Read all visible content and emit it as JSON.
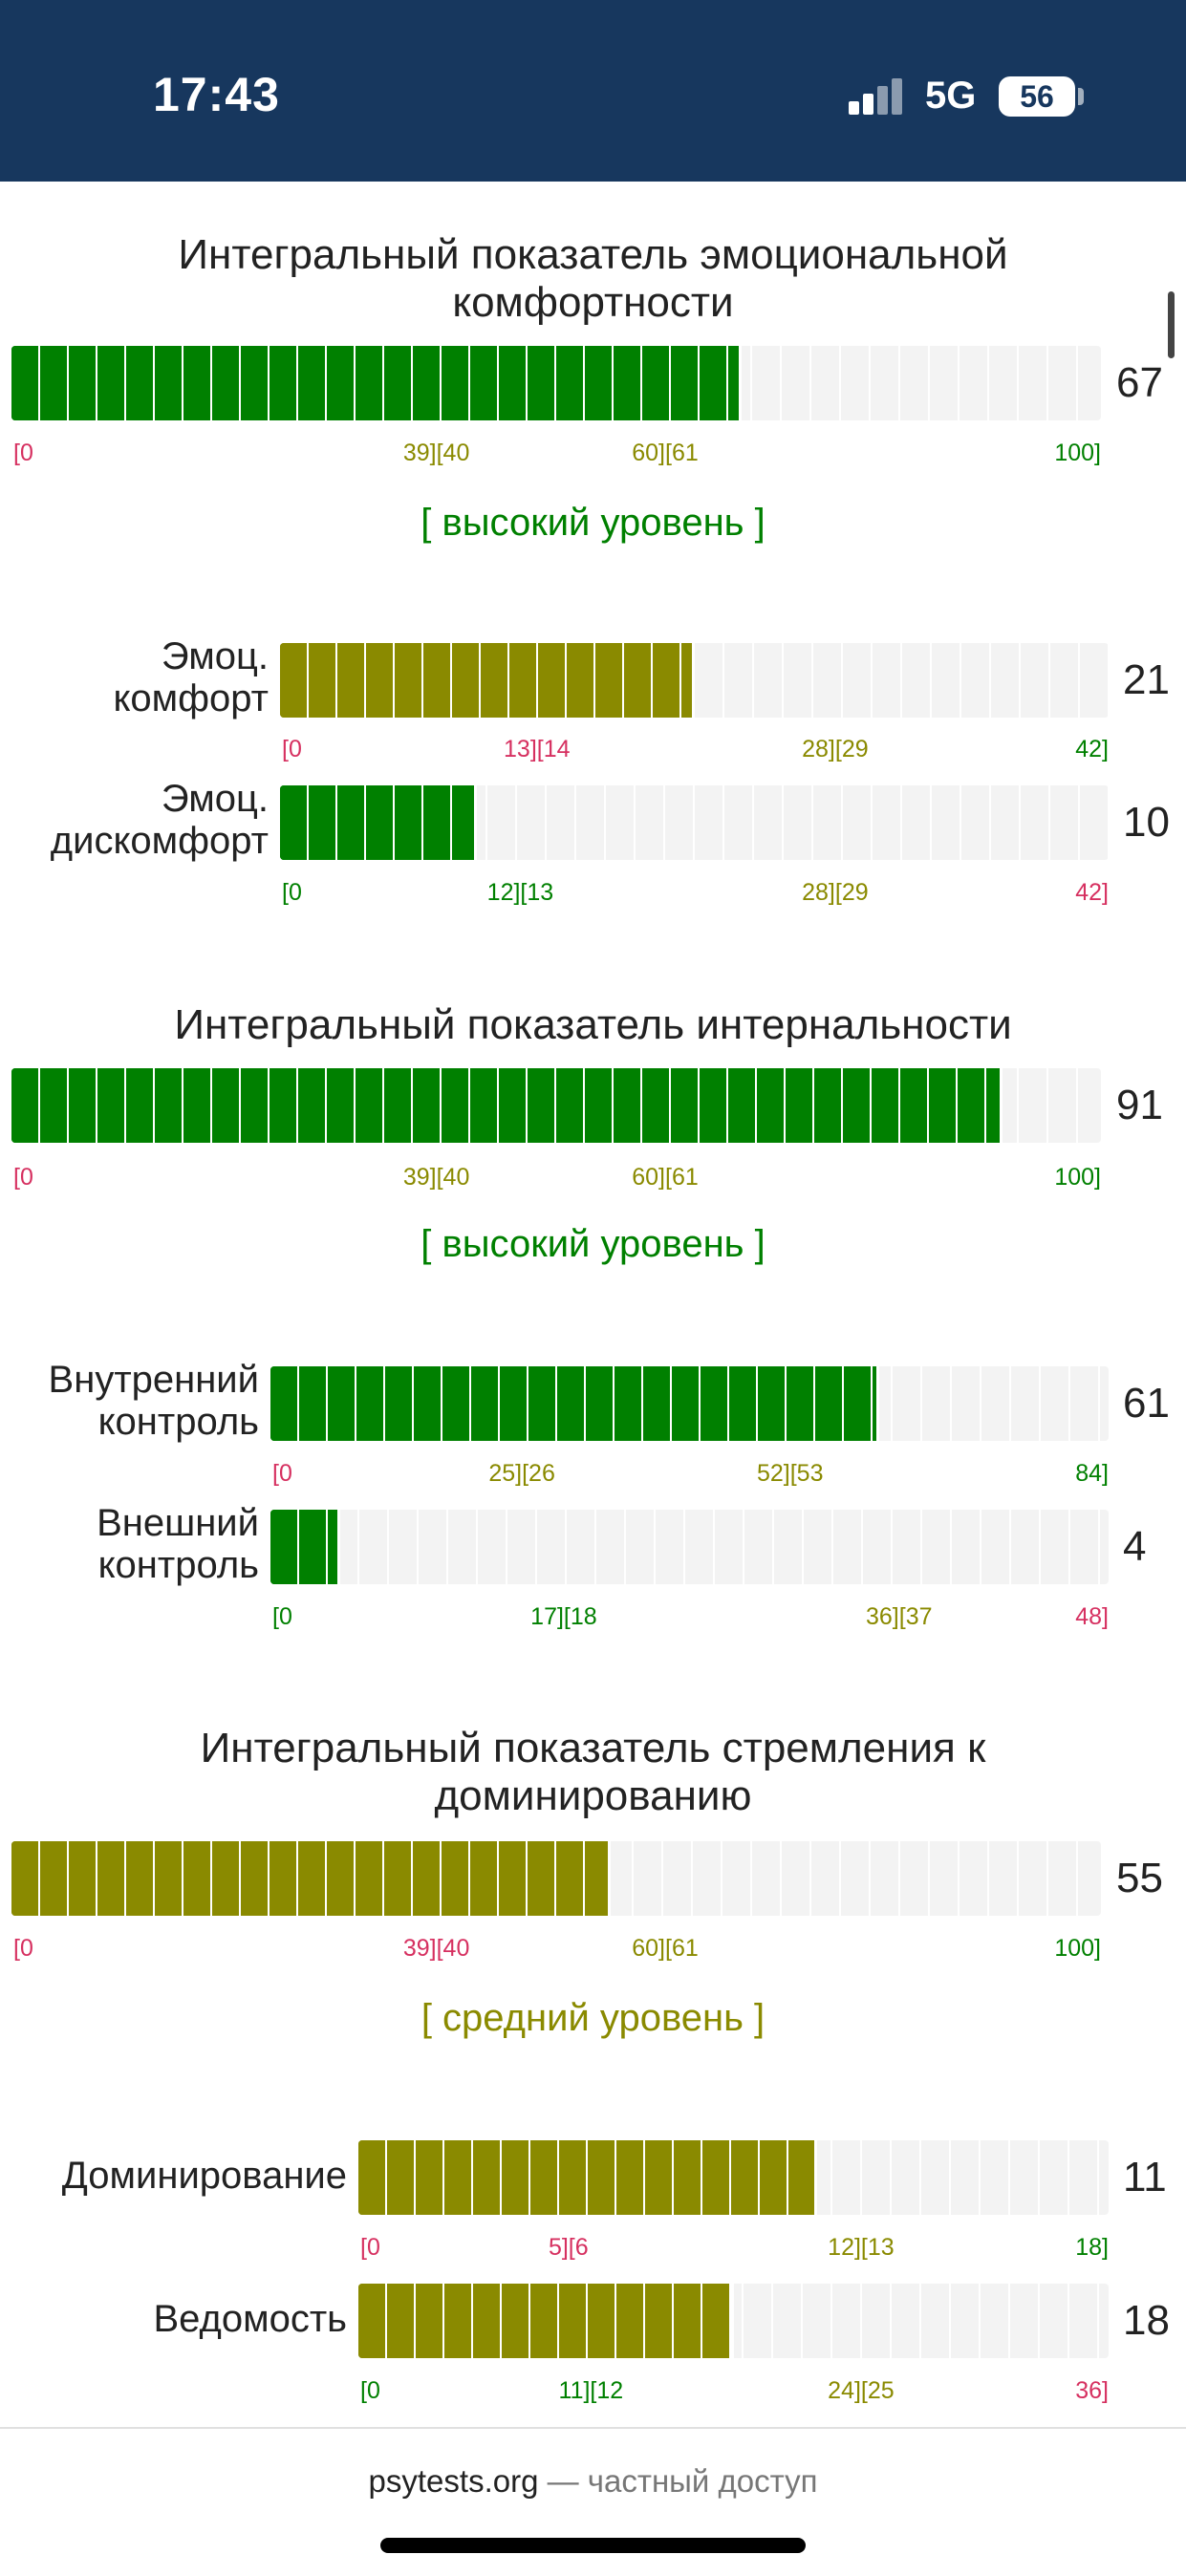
{
  "status": {
    "time": "17:43",
    "network": "5G",
    "battery": "56"
  },
  "sections": [
    {
      "title_lines": [
        "Интегральный показатель эмоциональной",
        "комфортности"
      ],
      "score": "67",
      "fill": 0.67,
      "color": "green",
      "scale": [
        {
          "text": "[0",
          "color": "red",
          "pos": 0
        },
        {
          "text": "39][40",
          "color": "olive",
          "pos": 0.39
        },
        {
          "text": "60][61",
          "color": "olive",
          "pos": 0.6
        },
        {
          "text": "100]",
          "color": "green",
          "pos": 1.0
        }
      ],
      "level": "[ высокий уровень ]",
      "level_color": "green",
      "subs": [
        {
          "label_lines": [
            "Эмоц.",
            "комфорт"
          ],
          "score": "21",
          "fill": 0.5,
          "color": "olive",
          "scale": [
            {
              "text": "[0",
              "color": "red",
              "pos": 0
            },
            {
              "text": "13][14",
              "color": "red",
              "pos": 0.31
            },
            {
              "text": "28][29",
              "color": "olive",
              "pos": 0.67
            },
            {
              "text": "42]",
              "color": "green",
              "pos": 1.0
            }
          ]
        },
        {
          "label_lines": [
            "Эмоц.",
            "дискомфорт"
          ],
          "score": "10",
          "fill": 0.238,
          "color": "green",
          "scale": [
            {
              "text": "[0",
              "color": "green",
              "pos": 0
            },
            {
              "text": "12][13",
              "color": "green",
              "pos": 0.29
            },
            {
              "text": "28][29",
              "color": "olive",
              "pos": 0.67
            },
            {
              "text": "42]",
              "color": "red",
              "pos": 1.0
            }
          ]
        }
      ]
    },
    {
      "title_lines": [
        "Интегральный показатель интернальности"
      ],
      "score": "91",
      "fill": 0.91,
      "color": "green",
      "scale": [
        {
          "text": "[0",
          "color": "red",
          "pos": 0
        },
        {
          "text": "39][40",
          "color": "olive",
          "pos": 0.39
        },
        {
          "text": "60][61",
          "color": "olive",
          "pos": 0.6
        },
        {
          "text": "100]",
          "color": "green",
          "pos": 1.0
        }
      ],
      "level": "[ высокий уровень ]",
      "level_color": "green",
      "subs": [
        {
          "label_lines": [
            "Внутренний",
            "контроль"
          ],
          "score": "61",
          "fill": 0.726,
          "color": "green",
          "scale": [
            {
              "text": "[0",
              "color": "red",
              "pos": 0
            },
            {
              "text": "25][26",
              "color": "olive",
              "pos": 0.3
            },
            {
              "text": "52][53",
              "color": "olive",
              "pos": 0.62
            },
            {
              "text": "84]",
              "color": "green",
              "pos": 1.0
            }
          ]
        },
        {
          "label_lines": [
            "Внешний",
            "контроль"
          ],
          "score": "4",
          "fill": 0.083,
          "color": "green",
          "scale": [
            {
              "text": "[0",
              "color": "green",
              "pos": 0
            },
            {
              "text": "17][18",
              "color": "green",
              "pos": 0.35
            },
            {
              "text": "36][37",
              "color": "olive",
              "pos": 0.75
            },
            {
              "text": "48]",
              "color": "red",
              "pos": 1.0
            }
          ]
        }
      ]
    },
    {
      "title_lines": [
        "Интегральный показатель стремления к",
        "доминированию"
      ],
      "score": "55",
      "fill": 0.55,
      "color": "olive",
      "scale": [
        {
          "text": "[0",
          "color": "red",
          "pos": 0
        },
        {
          "text": "39][40",
          "color": "red",
          "pos": 0.39
        },
        {
          "text": "60][61",
          "color": "olive",
          "pos": 0.6
        },
        {
          "text": "100]",
          "color": "green",
          "pos": 1.0
        }
      ],
      "level": "[ средний уровень ]",
      "level_color": "olive",
      "subs": [
        {
          "label_lines": [
            "Доминирование"
          ],
          "score": "11",
          "fill": 0.611,
          "color": "olive",
          "scale": [
            {
              "text": "[0",
              "color": "red",
              "pos": 0
            },
            {
              "text": "5][6",
              "color": "red",
              "pos": 0.28
            },
            {
              "text": "12][13",
              "color": "olive",
              "pos": 0.67
            },
            {
              "text": "18]",
              "color": "green",
              "pos": 1.0
            }
          ]
        },
        {
          "label_lines": [
            "Ведомость"
          ],
          "score": "18",
          "fill": 0.5,
          "color": "olive",
          "scale": [
            {
              "text": "[0",
              "color": "green",
              "pos": 0
            },
            {
              "text": "11][12",
              "color": "green",
              "pos": 0.31
            },
            {
              "text": "24][25",
              "color": "olive",
              "pos": 0.67
            },
            {
              "text": "36]",
              "color": "red",
              "pos": 1.0
            }
          ]
        }
      ]
    }
  ],
  "footer": {
    "site": "psytests.org",
    "rest": " — частный доступ"
  }
}
